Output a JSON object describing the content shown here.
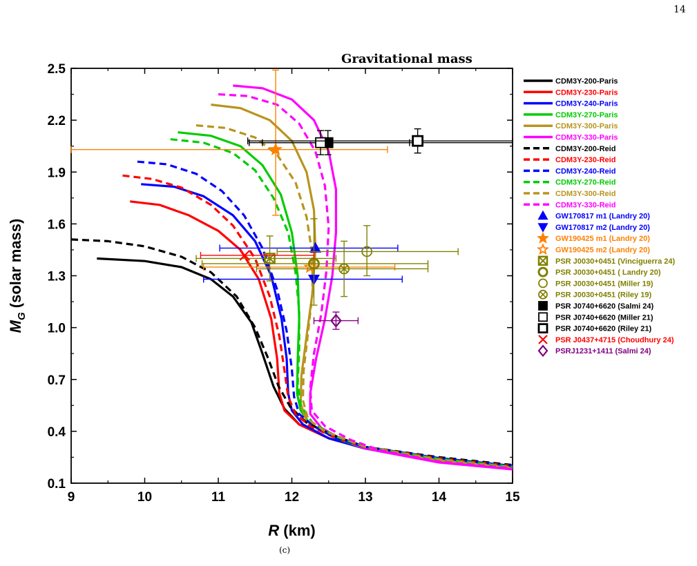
{
  "page_number": "14",
  "caption": "(c)",
  "chart_data": {
    "type": "line",
    "title": "Gravitational mass",
    "xlabel": "R",
    "xlabel_unit": "(km)",
    "ylabel_main": "M",
    "ylabel_sub": "G",
    "ylabel_rest": "(solar mass)",
    "xlim": [
      9,
      15
    ],
    "ylim": [
      0.1,
      2.5
    ],
    "x_ticks": [
      "9",
      "10",
      "11",
      "12",
      "13",
      "14",
      "15"
    ],
    "y_ticks": [
      "0.1",
      "0.4",
      "0.7",
      "1.0",
      "1.3",
      "1.6",
      "1.9",
      "2.2",
      "2.5"
    ],
    "grid": false,
    "legend_position": "right",
    "series": [
      {
        "name": "CDM3Y-200-Paris",
        "color": "#000000",
        "dash": false,
        "points": [
          [
            9.35,
            1.4
          ],
          [
            10.0,
            1.385
          ],
          [
            10.5,
            1.35
          ],
          [
            10.9,
            1.28
          ],
          [
            11.2,
            1.18
          ],
          [
            11.45,
            1.03
          ],
          [
            11.6,
            0.85
          ],
          [
            11.75,
            0.66
          ],
          [
            11.9,
            0.53
          ],
          [
            12.1,
            0.44
          ],
          [
            12.5,
            0.36
          ],
          [
            13.0,
            0.3
          ],
          [
            14.0,
            0.24
          ],
          [
            15.0,
            0.2
          ]
        ]
      },
      {
        "name": "CDM3Y-230-Paris",
        "color": "#ff0000",
        "dash": false,
        "points": [
          [
            9.8,
            1.73
          ],
          [
            10.2,
            1.71
          ],
          [
            10.6,
            1.65
          ],
          [
            11.0,
            1.56
          ],
          [
            11.3,
            1.45
          ],
          [
            11.55,
            1.28
          ],
          [
            11.72,
            1.05
          ],
          [
            11.8,
            0.82
          ],
          [
            11.83,
            0.62
          ],
          [
            11.9,
            0.52
          ],
          [
            12.1,
            0.44
          ],
          [
            12.5,
            0.36
          ],
          [
            13.0,
            0.3
          ],
          [
            14.0,
            0.24
          ],
          [
            15.0,
            0.195
          ]
        ]
      },
      {
        "name": "CDM3Y-240-Paris",
        "color": "#0000ff",
        "dash": false,
        "points": [
          [
            9.95,
            1.83
          ],
          [
            10.4,
            1.815
          ],
          [
            10.8,
            1.76
          ],
          [
            11.2,
            1.65
          ],
          [
            11.5,
            1.5
          ],
          [
            11.72,
            1.3
          ],
          [
            11.86,
            1.05
          ],
          [
            11.93,
            0.82
          ],
          [
            11.95,
            0.62
          ],
          [
            12.0,
            0.52
          ],
          [
            12.15,
            0.44
          ],
          [
            12.5,
            0.36
          ],
          [
            13.0,
            0.3
          ],
          [
            14.0,
            0.24
          ],
          [
            15.0,
            0.195
          ]
        ]
      },
      {
        "name": "CDM3Y-270-Paris",
        "color": "#00cc00",
        "dash": false,
        "points": [
          [
            10.45,
            2.13
          ],
          [
            10.9,
            2.11
          ],
          [
            11.3,
            2.05
          ],
          [
            11.6,
            1.94
          ],
          [
            11.85,
            1.77
          ],
          [
            12.0,
            1.55
          ],
          [
            12.08,
            1.3
          ],
          [
            12.1,
            1.05
          ],
          [
            12.08,
            0.82
          ],
          [
            12.07,
            0.62
          ],
          [
            12.12,
            0.52
          ],
          [
            12.25,
            0.44
          ],
          [
            12.6,
            0.36
          ],
          [
            13.0,
            0.3
          ],
          [
            14.0,
            0.235
          ],
          [
            15.0,
            0.19
          ]
        ]
      },
      {
        "name": "CDM3Y-300-Paris",
        "color": "#b8941f",
        "dash": false,
        "points": [
          [
            10.9,
            2.29
          ],
          [
            11.3,
            2.27
          ],
          [
            11.7,
            2.2
          ],
          [
            12.0,
            2.08
          ],
          [
            12.2,
            1.9
          ],
          [
            12.3,
            1.68
          ],
          [
            12.32,
            1.45
          ],
          [
            12.28,
            1.2
          ],
          [
            12.2,
            0.95
          ],
          [
            12.13,
            0.72
          ],
          [
            12.12,
            0.56
          ],
          [
            12.2,
            0.46
          ],
          [
            12.4,
            0.4
          ],
          [
            13.0,
            0.3
          ],
          [
            14.0,
            0.23
          ],
          [
            15.0,
            0.19
          ]
        ]
      },
      {
        "name": "CDM3Y-330-Paris",
        "color": "#ff00ff",
        "dash": false,
        "points": [
          [
            11.2,
            2.4
          ],
          [
            11.6,
            2.385
          ],
          [
            12.0,
            2.32
          ],
          [
            12.3,
            2.2
          ],
          [
            12.5,
            2.02
          ],
          [
            12.6,
            1.8
          ],
          [
            12.6,
            1.55
          ],
          [
            12.55,
            1.3
          ],
          [
            12.45,
            1.05
          ],
          [
            12.33,
            0.82
          ],
          [
            12.25,
            0.62
          ],
          [
            12.25,
            0.5
          ],
          [
            12.4,
            0.42
          ],
          [
            12.7,
            0.35
          ],
          [
            13.0,
            0.3
          ],
          [
            14.0,
            0.22
          ],
          [
            15.0,
            0.18
          ]
        ]
      },
      {
        "name": "CDM3Y-200-Reid",
        "color": "#000000",
        "dash": true,
        "points": [
          [
            9.0,
            1.51
          ],
          [
            9.5,
            1.5
          ],
          [
            10.0,
            1.47
          ],
          [
            10.5,
            1.41
          ],
          [
            10.9,
            1.32
          ],
          [
            11.25,
            1.18
          ],
          [
            11.5,
            1.0
          ],
          [
            11.68,
            0.82
          ],
          [
            11.82,
            0.66
          ],
          [
            11.98,
            0.54
          ],
          [
            12.2,
            0.45
          ],
          [
            12.6,
            0.37
          ],
          [
            13.0,
            0.31
          ],
          [
            14.0,
            0.25
          ],
          [
            15.0,
            0.205
          ]
        ]
      },
      {
        "name": "CDM3Y-230-Reid",
        "color": "#ff0000",
        "dash": true,
        "points": [
          [
            9.7,
            1.88
          ],
          [
            10.1,
            1.86
          ],
          [
            10.5,
            1.81
          ],
          [
            10.9,
            1.71
          ],
          [
            11.2,
            1.59
          ],
          [
            11.5,
            1.4
          ],
          [
            11.7,
            1.18
          ],
          [
            11.83,
            0.95
          ],
          [
            11.9,
            0.75
          ],
          [
            11.95,
            0.6
          ],
          [
            12.05,
            0.5
          ],
          [
            12.25,
            0.43
          ],
          [
            12.6,
            0.36
          ],
          [
            13.0,
            0.31
          ],
          [
            14.0,
            0.245
          ],
          [
            15.0,
            0.2
          ]
        ]
      },
      {
        "name": "CDM3Y-240-Reid",
        "color": "#0000ff",
        "dash": true,
        "points": [
          [
            9.9,
            1.96
          ],
          [
            10.3,
            1.945
          ],
          [
            10.7,
            1.89
          ],
          [
            11.05,
            1.79
          ],
          [
            11.35,
            1.65
          ],
          [
            11.6,
            1.46
          ],
          [
            11.8,
            1.22
          ],
          [
            11.93,
            0.98
          ],
          [
            12.0,
            0.76
          ],
          [
            12.03,
            0.6
          ],
          [
            12.1,
            0.5
          ],
          [
            12.3,
            0.43
          ],
          [
            12.6,
            0.36
          ],
          [
            13.0,
            0.31
          ],
          [
            14.0,
            0.245
          ],
          [
            15.0,
            0.2
          ]
        ]
      },
      {
        "name": "CDM3Y-270-Reid",
        "color": "#00cc00",
        "dash": true,
        "points": [
          [
            10.35,
            2.09
          ],
          [
            10.8,
            2.07
          ],
          [
            11.2,
            2.01
          ],
          [
            11.5,
            1.91
          ],
          [
            11.75,
            1.75
          ],
          [
            11.95,
            1.55
          ],
          [
            12.05,
            1.32
          ],
          [
            12.1,
            1.1
          ],
          [
            12.1,
            0.88
          ],
          [
            12.08,
            0.68
          ],
          [
            12.12,
            0.55
          ],
          [
            12.28,
            0.45
          ],
          [
            12.6,
            0.37
          ],
          [
            13.0,
            0.31
          ],
          [
            14.0,
            0.24
          ],
          [
            15.0,
            0.195
          ]
        ]
      },
      {
        "name": "CDM3Y-300-Reid",
        "color": "#b8941f",
        "dash": true,
        "points": [
          [
            10.7,
            2.17
          ],
          [
            11.1,
            2.155
          ],
          [
            11.5,
            2.1
          ],
          [
            11.8,
            2.0
          ],
          [
            12.05,
            1.84
          ],
          [
            12.2,
            1.64
          ],
          [
            12.28,
            1.42
          ],
          [
            12.28,
            1.2
          ],
          [
            12.22,
            0.97
          ],
          [
            12.16,
            0.75
          ],
          [
            12.15,
            0.58
          ],
          [
            12.22,
            0.47
          ],
          [
            12.45,
            0.4
          ],
          [
            13.0,
            0.31
          ],
          [
            14.0,
            0.235
          ],
          [
            15.0,
            0.19
          ]
        ]
      },
      {
        "name": "CDM3Y-330-Reid",
        "color": "#ff00ff",
        "dash": true,
        "points": [
          [
            11.0,
            2.35
          ],
          [
            11.4,
            2.34
          ],
          [
            11.8,
            2.29
          ],
          [
            12.1,
            2.18
          ],
          [
            12.32,
            2.02
          ],
          [
            12.45,
            1.82
          ],
          [
            12.5,
            1.58
          ],
          [
            12.47,
            1.33
          ],
          [
            12.4,
            1.08
          ],
          [
            12.3,
            0.85
          ],
          [
            12.25,
            0.65
          ],
          [
            12.27,
            0.52
          ],
          [
            12.45,
            0.43
          ],
          [
            12.8,
            0.35
          ],
          [
            13.2,
            0.29
          ],
          [
            14.0,
            0.225
          ],
          [
            15.0,
            0.185
          ]
        ]
      }
    ],
    "observations": [
      {
        "name": "GW170817 m1 (Landry 20)",
        "color": "#0000ff",
        "marker": "triangle-up",
        "filled": true,
        "x": 12.32,
        "y": 1.46,
        "xerr": [
          11.02,
          13.44
        ],
        "yerr": null
      },
      {
        "name": "GW170817 m2 (Landry 20)",
        "color": "#0000ff",
        "marker": "triangle-down",
        "filled": true,
        "x": 12.3,
        "y": 1.28,
        "xerr": [
          10.8,
          13.5
        ],
        "yerr": null
      },
      {
        "name": "GW190425 m1 (Landry 20)",
        "color": "#ff8000",
        "marker": "star",
        "filled": true,
        "x": 11.78,
        "y": 2.03,
        "xerr": [
          9.0,
          13.3
        ],
        "yerr": [
          1.65,
          2.49
        ]
      },
      {
        "name": "GW190425 m2 (Landry 20)",
        "color": "#ff8000",
        "marker": "star",
        "filled": false,
        "x": 12.25,
        "y": 1.35,
        "xerr": [
          10.8,
          13.4
        ],
        "yerr": null
      },
      {
        "name": "PSR J0030+0451 (Vinciguerra 24)",
        "color": "#808000",
        "marker": "square-x",
        "filled": false,
        "x": 11.7,
        "y": 1.4,
        "xerr": [
          10.7,
          12.6
        ],
        "yerr": [
          1.27,
          1.53
        ]
      },
      {
        "name": "PSR J0030+0451 ( Landry 20)",
        "color": "#808000",
        "marker": "circle-bold",
        "filled": false,
        "x": 12.3,
        "y": 1.37,
        "xerr": [
          10.78,
          13.85
        ],
        "yerr": [
          1.13,
          1.63
        ]
      },
      {
        "name": "PSR J0030+0451 (Miller 19)",
        "color": "#808000",
        "marker": "circle",
        "filled": false,
        "x": 13.02,
        "y": 1.44,
        "xerr": [
          11.8,
          14.26
        ],
        "yerr": [
          1.3,
          1.59
        ]
      },
      {
        "name": "PSR J0030+0451 (Riley 19)",
        "color": "#808000",
        "marker": "circle-x",
        "filled": false,
        "x": 12.71,
        "y": 1.34,
        "xerr": [
          11.52,
          13.85
        ],
        "yerr": [
          1.18,
          1.5
        ]
      },
      {
        "name": "PSR J0740+6620 (Salmi 24)",
        "color": "#000000",
        "marker": "square",
        "filled": true,
        "x": 12.49,
        "y": 2.07,
        "xerr": [
          11.42,
          13.6
        ],
        "yerr": [
          2.0,
          2.14
        ]
      },
      {
        "name": "PSR J0740+6620 (Miller 21)",
        "color": "#000000",
        "marker": "square",
        "filled": false,
        "x": 12.39,
        "y": 2.07,
        "xerr": [
          11.6,
          15.0
        ],
        "yerr": [
          2.0,
          2.14
        ]
      },
      {
        "name": "PSR J0740+6620 (Riley 21)",
        "color": "#000000",
        "marker": "square-bold",
        "filled": false,
        "x": 13.71,
        "y": 2.08,
        "xerr": [
          11.4,
          15.0
        ],
        "yerr": [
          2.01,
          2.15
        ]
      },
      {
        "name": "PSR J0437+4715 (Choudhury 24)",
        "color": "#ff0000",
        "marker": "x",
        "filled": false,
        "x": 11.36,
        "y": 1.418,
        "xerr": [
          10.76,
          12.3
        ],
        "yerr": null
      },
      {
        "name": "PSRJ1231+1411 (Salmi 24)",
        "color": "#800080",
        "marker": "diamond",
        "filled": false,
        "x": 12.6,
        "y": 1.04,
        "xerr": [
          12.3,
          12.9
        ],
        "yerr": [
          0.99,
          1.09
        ]
      }
    ]
  }
}
